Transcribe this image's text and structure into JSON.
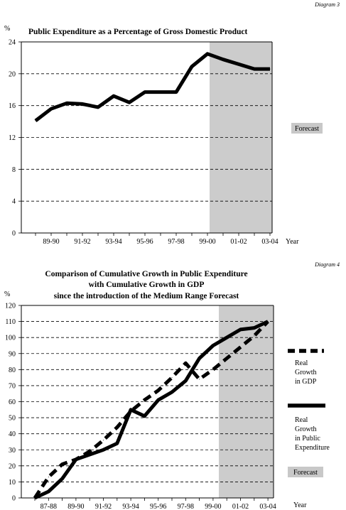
{
  "chart_data": [
    {
      "type": "line",
      "diagram_label": "Diagram 3",
      "title": "Public Expenditure as a Percentage of Gross Domestic Product",
      "ylabel": "%",
      "xlabel": "Year",
      "ylim": [
        0,
        24
      ],
      "yticks": [
        0,
        4,
        8,
        12,
        16,
        20,
        24
      ],
      "x_tick_labels": [
        "89-90",
        "91-92",
        "93-94",
        "95-96",
        "97-98",
        "99-00",
        "01-02",
        "03-04"
      ],
      "x": [
        "88-89",
        "89-90",
        "90-91",
        "91-92",
        "92-93",
        "93-94",
        "94-95",
        "95-96",
        "96-97",
        "97-98",
        "98-99",
        "99-00",
        "00-01",
        "01-02",
        "02-03",
        "03-04"
      ],
      "series": [
        {
          "values": [
            14.1,
            15.6,
            16.3,
            16.2,
            15.8,
            17.2,
            16.4,
            17.7,
            17.7,
            17.7,
            20.9,
            22.5,
            21.8,
            21.2,
            20.6,
            20.6
          ]
        }
      ],
      "forecast_from": "99-00",
      "forecast_label": "Forecast",
      "grid": "dashed horizontal"
    },
    {
      "type": "line",
      "diagram_label": "Diagram 4",
      "title_lines": [
        "Comparison of Cumulative Growth in  Public Expenditure",
        "with Cumulative Growth in GDP",
        "since the introduction of the Medium Range Forecast"
      ],
      "ylabel": "%",
      "xlabel": "Year",
      "ylim": [
        0,
        120
      ],
      "yticks": [
        0,
        10,
        20,
        30,
        40,
        50,
        60,
        70,
        80,
        90,
        100,
        110,
        120
      ],
      "x_tick_labels": [
        "87-88",
        "89-90",
        "91-92",
        "93-94",
        "95-96",
        "97-98",
        "99-00",
        "01-02",
        "03-04"
      ],
      "x": [
        "86-87",
        "87-88",
        "88-89",
        "89-90",
        "90-91",
        "91-92",
        "92-93",
        "93-94",
        "94-95",
        "95-96",
        "96-97",
        "97-98",
        "98-99",
        "99-00",
        "00-01",
        "01-02",
        "02-03",
        "03-04"
      ],
      "series": [
        {
          "name_lines": [
            "Real",
            "Growth",
            "in GDP"
          ],
          "style": "dashed",
          "values": [
            0,
            13,
            21,
            24,
            29,
            36,
            44,
            54,
            61,
            67,
            75,
            84,
            74,
            80,
            87,
            94,
            101,
            110
          ]
        },
        {
          "name_lines": [
            "Real",
            "Growth",
            "in Public",
            "Expenditure"
          ],
          "style": "solid",
          "values": [
            0,
            4,
            12,
            24,
            27,
            30,
            34,
            55,
            51,
            61,
            66,
            73,
            87,
            95,
            100,
            105,
            106,
            110
          ]
        }
      ],
      "forecast_from": "99-00",
      "forecast_label": "Forecast",
      "grid": "dashed horizontal"
    }
  ]
}
